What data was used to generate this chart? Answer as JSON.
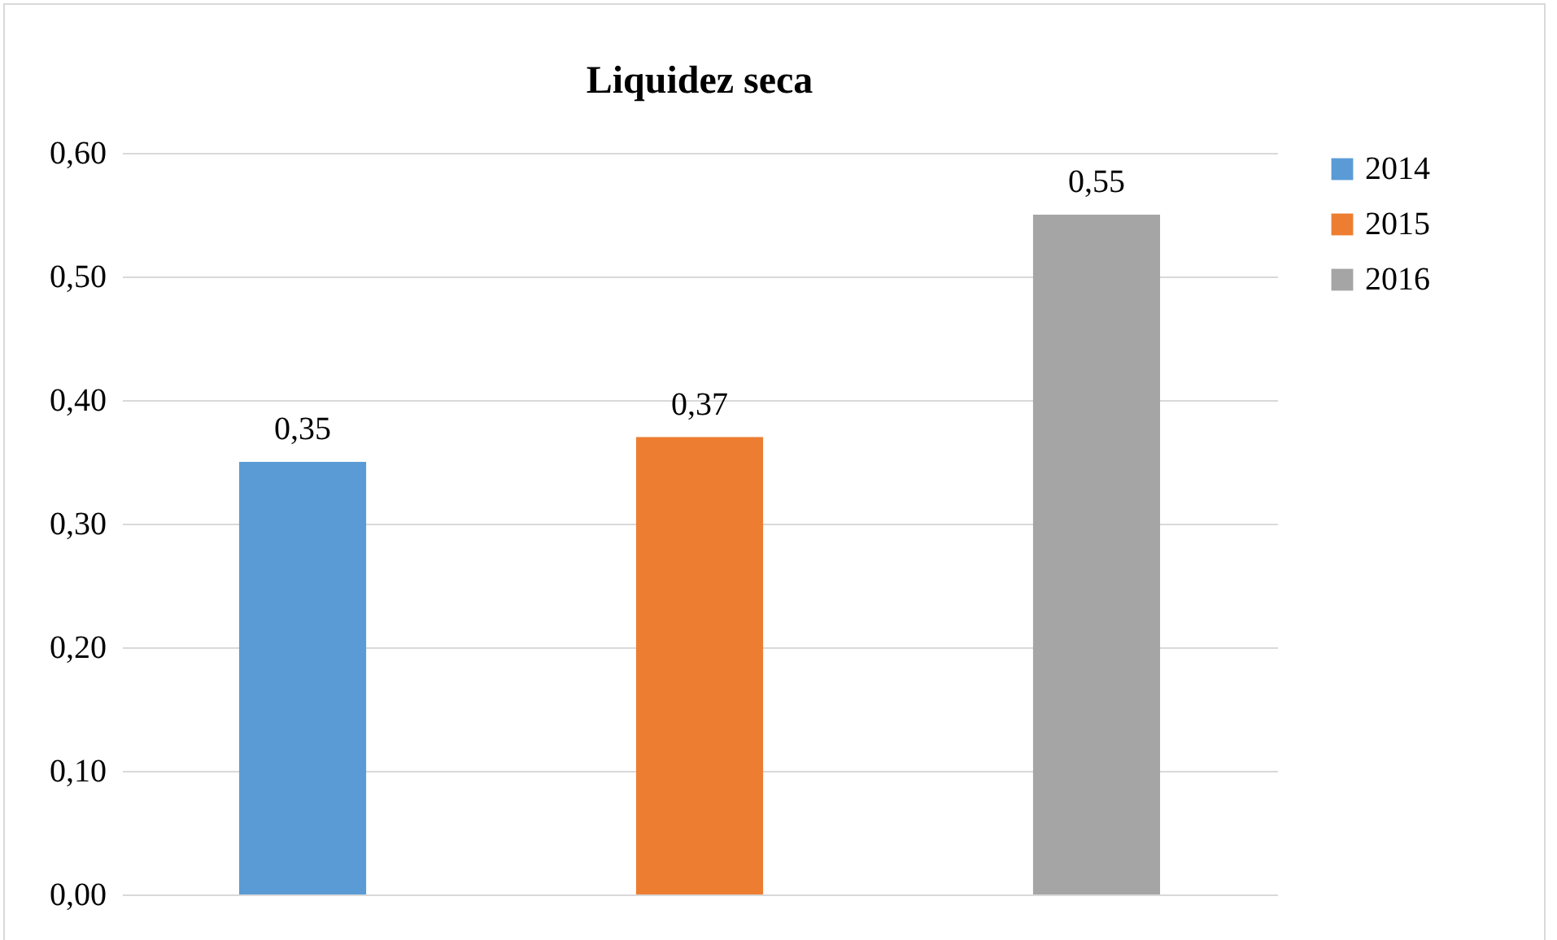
{
  "chart_data": {
    "type": "bar",
    "title": "Liquidez seca",
    "categories": [
      null
    ],
    "series": [
      {
        "name": "2014",
        "color": "#5b9bd5",
        "values": [
          0.35
        ],
        "value_labels": [
          "0,35"
        ]
      },
      {
        "name": "2015",
        "color": "#ed7d31",
        "values": [
          0.37
        ],
        "value_labels": [
          "0,37"
        ]
      },
      {
        "name": "2016",
        "color": "#a5a5a5",
        "values": [
          0.55
        ],
        "value_labels": [
          "0,55"
        ]
      }
    ],
    "ylim": [
      0,
      0.6
    ],
    "yticks": [
      {
        "value": 0,
        "label": "0,00"
      },
      {
        "value": 0.1,
        "label": "0,10"
      },
      {
        "value": 0.2,
        "label": "0,20"
      },
      {
        "value": 0.3,
        "label": "0,30"
      },
      {
        "value": 0.4,
        "label": "0,40"
      },
      {
        "value": 0.5,
        "label": "0,50"
      },
      {
        "value": 0.6,
        "label": "0,60"
      }
    ],
    "grid": "y",
    "legend": "right"
  }
}
